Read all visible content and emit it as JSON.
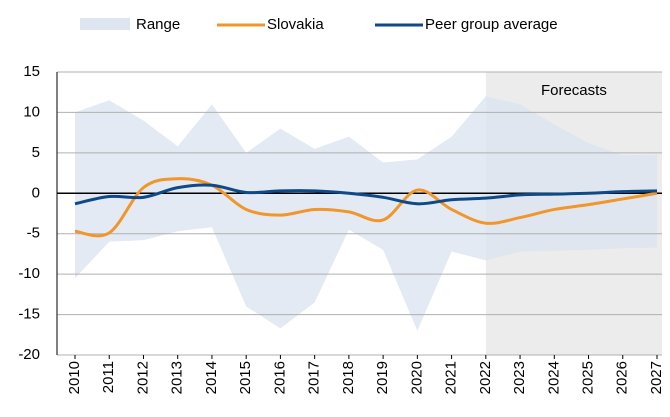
{
  "chart_data": {
    "type": "line",
    "categories": [
      "2010",
      "2011",
      "2012",
      "2013",
      "2014",
      "2015",
      "2016",
      "2017",
      "2018",
      "2019",
      "2020",
      "2021",
      "2022",
      "2023",
      "2024",
      "2025",
      "2026",
      "2027"
    ],
    "band": {
      "name": "Range",
      "color": "#dce5f0",
      "upper": [
        10,
        11.5,
        9,
        5.8,
        11,
        5,
        8,
        5.5,
        7,
        3.8,
        4.2,
        7,
        12,
        11,
        8.5,
        6.2,
        4.7,
        4.8
      ],
      "lower": [
        -10.5,
        -6,
        -5.8,
        -4.7,
        -4.2,
        -14,
        -16.7,
        -13.5,
        -4.5,
        -7,
        -17,
        -7.2,
        -8.3,
        -7.2,
        -7.1,
        -7,
        -6.8,
        -6.7
      ]
    },
    "series": [
      {
        "name": "Slovakia",
        "color": "#f0962a",
        "values": [
          -4.7,
          -4.9,
          0.7,
          1.8,
          1.0,
          -2.0,
          -2.7,
          -2.0,
          -2.3,
          -3.3,
          0.4,
          -2.0,
          -3.7,
          -3.0,
          -2.0,
          -1.4,
          -0.7,
          0.0
        ]
      },
      {
        "name": "Peer group average",
        "color": "#0f4a86",
        "values": [
          -1.3,
          -0.4,
          -0.5,
          0.7,
          1.0,
          0.1,
          0.3,
          0.3,
          0.0,
          -0.5,
          -1.3,
          -0.8,
          -0.6,
          -0.2,
          -0.1,
          0.0,
          0.2,
          0.3
        ]
      }
    ],
    "forecast": {
      "label": "Forecasts",
      "from": "2022"
    },
    "ylim": [
      -20,
      15
    ],
    "yticks": [
      -20,
      -15,
      -10,
      -5,
      0,
      5,
      10,
      15
    ],
    "grid": true
  }
}
